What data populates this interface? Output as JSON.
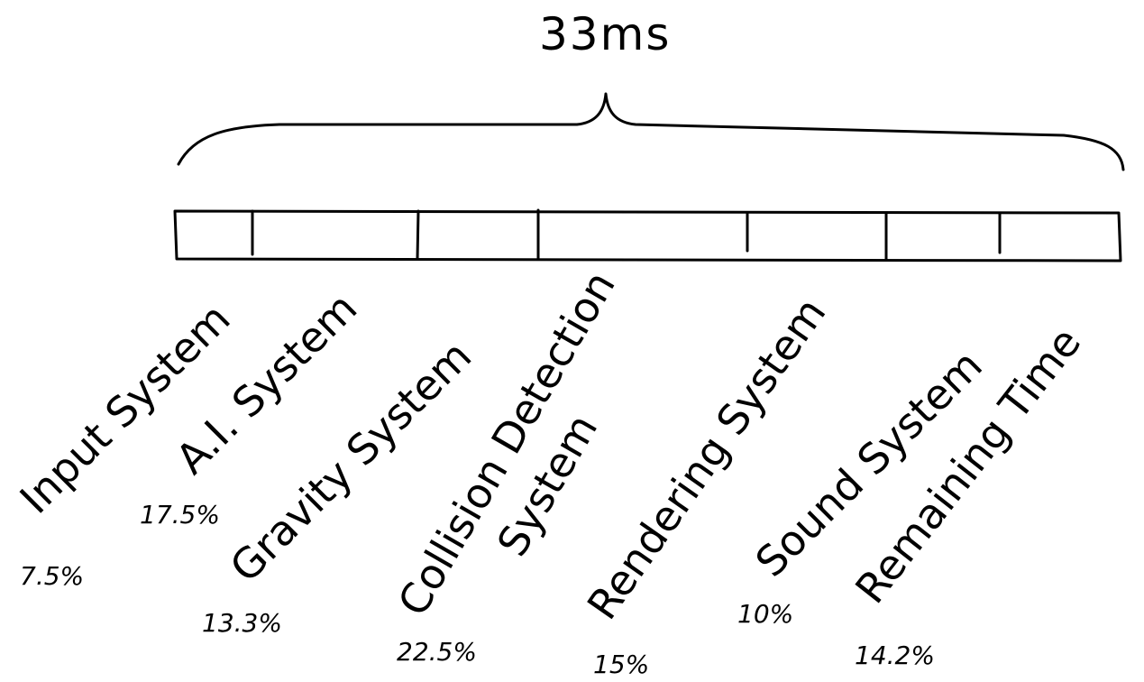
{
  "total": "33ms",
  "segments": [
    {
      "label": "Input System",
      "percent": "7.5%"
    },
    {
      "label": "A.I. System",
      "percent": "17.5%"
    },
    {
      "label": "Gravity System",
      "percent": "13.3%"
    },
    {
      "label_line1": "Collision Detection",
      "label_line2": "System",
      "percent": "22.5%"
    },
    {
      "label": "Rendering System",
      "percent": "15%"
    },
    {
      "label": "Sound System",
      "percent": "10%"
    },
    {
      "label": "Remaining Time",
      "percent": "14.2%"
    }
  ]
}
